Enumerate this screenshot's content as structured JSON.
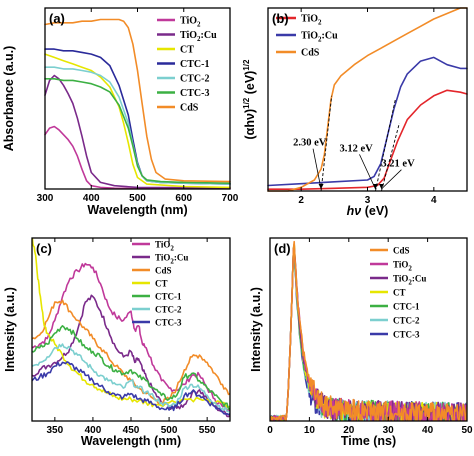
{
  "chart_data": [
    {
      "panel": "(a)",
      "type": "line",
      "xlabel": "Wavelength (nm)",
      "ylabel": "Absorbance (a.u.)",
      "xlim": [
        300,
        700
      ],
      "ylim": [
        0,
        1.1
      ],
      "xticks": [
        300,
        400,
        500,
        600,
        700
      ],
      "legend_position": "top-right",
      "series": [
        {
          "name": "TiO2",
          "label_main": "TiO",
          "label_sub": "2",
          "label_tail": "",
          "color": "#c0399a",
          "x": [
            300,
            310,
            320,
            330,
            340,
            350,
            360,
            370,
            380,
            390,
            400,
            420,
            450,
            500,
            600,
            700
          ],
          "y": [
            0.33,
            0.37,
            0.38,
            0.36,
            0.33,
            0.3,
            0.26,
            0.2,
            0.12,
            0.05,
            0.02,
            0.01,
            0.005,
            0.003,
            0.002,
            0.002
          ]
        },
        {
          "name": "TiO2:Cu",
          "label_main": "TiO",
          "label_sub": "2",
          "label_tail": ":Cu",
          "color": "#7a2a8a",
          "x": [
            300,
            310,
            320,
            330,
            340,
            350,
            360,
            370,
            380,
            390,
            400,
            420,
            450,
            500,
            600,
            700
          ],
          "y": [
            0.57,
            0.66,
            0.69,
            0.67,
            0.63,
            0.58,
            0.52,
            0.43,
            0.32,
            0.2,
            0.1,
            0.04,
            0.02,
            0.01,
            0.008,
            0.006
          ]
        },
        {
          "name": "CT",
          "color": "#e6e600",
          "x": [
            300,
            320,
            340,
            360,
            380,
            400,
            420,
            440,
            460,
            470,
            480,
            490,
            500,
            520,
            600,
            700
          ],
          "y": [
            0.82,
            0.8,
            0.78,
            0.76,
            0.74,
            0.72,
            0.68,
            0.62,
            0.5,
            0.4,
            0.28,
            0.15,
            0.07,
            0.03,
            0.015,
            0.01
          ]
        },
        {
          "name": "CTC-1",
          "color": "#2a2a9a",
          "x": [
            300,
            320,
            340,
            360,
            380,
            400,
            420,
            440,
            460,
            480,
            490,
            500,
            510,
            520,
            550,
            600,
            700
          ],
          "y": [
            0.85,
            0.85,
            0.84,
            0.84,
            0.83,
            0.82,
            0.8,
            0.75,
            0.63,
            0.45,
            0.3,
            0.16,
            0.08,
            0.05,
            0.04,
            0.035,
            0.03
          ]
        },
        {
          "name": "CTC-2",
          "color": "#7ccfcf",
          "x": [
            300,
            320,
            340,
            360,
            380,
            400,
            420,
            440,
            460,
            480,
            490,
            500,
            510,
            520,
            550,
            600,
            700
          ],
          "y": [
            0.74,
            0.74,
            0.73,
            0.73,
            0.72,
            0.71,
            0.69,
            0.65,
            0.56,
            0.4,
            0.27,
            0.15,
            0.08,
            0.05,
            0.04,
            0.035,
            0.03
          ]
        },
        {
          "name": "CTC-3",
          "color": "#3cb043",
          "x": [
            300,
            320,
            340,
            360,
            380,
            400,
            420,
            440,
            460,
            480,
            490,
            500,
            510,
            520,
            550,
            600,
            700
          ],
          "y": [
            0.67,
            0.67,
            0.66,
            0.66,
            0.65,
            0.64,
            0.62,
            0.59,
            0.51,
            0.37,
            0.26,
            0.14,
            0.08,
            0.055,
            0.045,
            0.04,
            0.035
          ]
        },
        {
          "name": "CdS",
          "color": "#f28c28",
          "x": [
            300,
            320,
            340,
            360,
            380,
            400,
            420,
            440,
            460,
            470,
            480,
            490,
            500,
            510,
            520,
            530,
            540,
            560,
            600,
            700
          ],
          "y": [
            1.0,
            1.01,
            1.01,
            1.01,
            1.02,
            1.02,
            1.03,
            1.03,
            1.03,
            1.02,
            0.98,
            0.88,
            0.72,
            0.52,
            0.32,
            0.18,
            0.1,
            0.06,
            0.05,
            0.045
          ]
        }
      ]
    },
    {
      "panel": "(b)",
      "type": "line",
      "xlabel_main": "hν",
      "xlabel_unit": " (eV)",
      "ylabel": "(αhν)1/2 (eV)1/2",
      "ylabel_main": "(αhν)",
      "ylabel_exp1": "1/2",
      "ylabel_mid": " (eV)",
      "ylabel_exp2": "1/2",
      "xlim": [
        1.5,
        4.5
      ],
      "ylim": [
        0,
        1.0
      ],
      "xticks": [
        2,
        3,
        4
      ],
      "legend_position": "top-left",
      "annotations": [
        {
          "text": "2.30 eV",
          "x": 2.3
        },
        {
          "text": "3.12 eV",
          "x": 3.12
        },
        {
          "text": "3.21 eV",
          "x": 3.21
        }
      ],
      "series": [
        {
          "name": "TiO2",
          "label_main": "TiO",
          "label_sub": "2",
          "label_tail": "",
          "color": "#e3262b",
          "x": [
            1.5,
            2.0,
            2.5,
            3.0,
            3.15,
            3.25,
            3.35,
            3.45,
            3.6,
            3.8,
            4.0,
            4.2,
            4.4,
            4.5
          ],
          "y": [
            0.01,
            0.01,
            0.015,
            0.02,
            0.03,
            0.07,
            0.17,
            0.27,
            0.39,
            0.47,
            0.52,
            0.55,
            0.54,
            0.53
          ]
        },
        {
          "name": "TiO2:Cu",
          "label_main": "TiO",
          "label_sub": "2",
          "label_tail": ":Cu",
          "color": "#3a3aa8",
          "x": [
            1.5,
            2.0,
            2.5,
            3.0,
            3.1,
            3.2,
            3.3,
            3.4,
            3.5,
            3.6,
            3.8,
            4.0,
            4.2,
            4.4,
            4.5
          ],
          "y": [
            0.03,
            0.04,
            0.05,
            0.06,
            0.08,
            0.15,
            0.3,
            0.45,
            0.57,
            0.64,
            0.71,
            0.73,
            0.69,
            0.67,
            0.67
          ]
        },
        {
          "name": "CdS",
          "color": "#f28c28",
          "x": [
            1.5,
            1.8,
            2.0,
            2.2,
            2.3,
            2.35,
            2.4,
            2.45,
            2.5,
            2.6,
            2.8,
            3.0,
            3.2,
            3.4,
            3.6,
            3.8,
            4.0,
            4.2,
            4.4,
            4.5
          ],
          "y": [
            0.0,
            0.0,
            0.02,
            0.06,
            0.12,
            0.2,
            0.35,
            0.5,
            0.58,
            0.63,
            0.69,
            0.74,
            0.78,
            0.82,
            0.86,
            0.9,
            0.94,
            0.97,
            1.0,
            1.0
          ]
        }
      ]
    },
    {
      "panel": "(c)",
      "type": "line",
      "xlabel": "Wavelength (nm)",
      "ylabel": "Intensity (a.u.)",
      "xlim": [
        320,
        580
      ],
      "ylim": [
        0,
        1.0
      ],
      "xticks": [
        350,
        400,
        450,
        500,
        550
      ],
      "legend_position": "top-right",
      "series": [
        {
          "name": "TiO2",
          "label_main": "TiO",
          "label_sub": "2",
          "label_tail": "",
          "color": "#c0399a",
          "x": [
            320,
            330,
            340,
            350,
            360,
            370,
            380,
            390,
            400,
            410,
            420,
            430,
            440,
            450,
            455,
            460,
            465,
            470,
            480,
            490,
            500,
            510,
            520,
            530,
            540,
            550,
            560,
            570,
            580
          ],
          "y": [
            0.4,
            0.42,
            0.45,
            0.55,
            0.68,
            0.78,
            0.82,
            0.86,
            0.84,
            0.75,
            0.63,
            0.57,
            0.55,
            0.6,
            0.5,
            0.52,
            0.42,
            0.4,
            0.3,
            0.22,
            0.18,
            0.17,
            0.2,
            0.25,
            0.25,
            0.18,
            0.12,
            0.08,
            0.05
          ]
        },
        {
          "name": "TiO2:Cu",
          "label_main": "TiO",
          "label_sub": "2",
          "label_tail": ":Cu",
          "color": "#7a2a8a",
          "x": [
            320,
            330,
            340,
            350,
            360,
            370,
            380,
            390,
            400,
            410,
            420,
            430,
            440,
            450,
            455,
            460,
            465,
            470,
            480,
            490,
            500,
            510,
            520,
            530,
            540,
            550,
            560,
            570,
            580
          ],
          "y": [
            0.25,
            0.28,
            0.3,
            0.32,
            0.35,
            0.4,
            0.5,
            0.65,
            0.68,
            0.6,
            0.5,
            0.4,
            0.35,
            0.38,
            0.32,
            0.34,
            0.28,
            0.24,
            0.16,
            0.1,
            0.08,
            0.07,
            0.09,
            0.15,
            0.17,
            0.12,
            0.08,
            0.05,
            0.03
          ]
        },
        {
          "name": "CdS",
          "color": "#f28c28",
          "x": [
            320,
            330,
            340,
            350,
            360,
            370,
            380,
            390,
            400,
            410,
            420,
            430,
            440,
            450,
            460,
            470,
            480,
            490,
            500,
            510,
            520,
            530,
            540,
            550,
            560,
            570,
            580
          ],
          "y": [
            0.45,
            0.47,
            0.55,
            0.65,
            0.66,
            0.6,
            0.55,
            0.5,
            0.45,
            0.4,
            0.35,
            0.3,
            0.26,
            0.22,
            0.18,
            0.15,
            0.12,
            0.1,
            0.12,
            0.18,
            0.28,
            0.35,
            0.36,
            0.32,
            0.26,
            0.2,
            0.15
          ]
        },
        {
          "name": "CT",
          "color": "#e6e600",
          "x": [
            320,
            323,
            326,
            330,
            335,
            340,
            350,
            360,
            370,
            380,
            390,
            400,
            410,
            420,
            430,
            440,
            450,
            460,
            470,
            480,
            500,
            520,
            540,
            560,
            580
          ],
          "y": [
            1.0,
            0.95,
            0.85,
            0.7,
            0.55,
            0.48,
            0.42,
            0.36,
            0.3,
            0.26,
            0.22,
            0.2,
            0.17,
            0.15,
            0.13,
            0.12,
            0.12,
            0.11,
            0.1,
            0.09,
            0.1,
            0.12,
            0.12,
            0.1,
            0.08
          ]
        },
        {
          "name": "CTC-1",
          "color": "#3cb043",
          "x": [
            320,
            330,
            340,
            350,
            360,
            370,
            380,
            390,
            400,
            410,
            420,
            430,
            440,
            450,
            460,
            470,
            480,
            490,
            500,
            510,
            520,
            530,
            540,
            550,
            560,
            570,
            580
          ],
          "y": [
            0.38,
            0.4,
            0.42,
            0.48,
            0.52,
            0.5,
            0.45,
            0.4,
            0.38,
            0.35,
            0.3,
            0.28,
            0.26,
            0.28,
            0.24,
            0.22,
            0.18,
            0.14,
            0.12,
            0.14,
            0.24,
            0.26,
            0.22,
            0.18,
            0.14,
            0.1,
            0.07
          ]
        },
        {
          "name": "CTC-2",
          "color": "#7ccfcf",
          "x": [
            320,
            330,
            340,
            350,
            360,
            370,
            380,
            390,
            400,
            410,
            420,
            430,
            440,
            450,
            460,
            470,
            480,
            490,
            500,
            510,
            520,
            530,
            540,
            550,
            560,
            570,
            580
          ],
          "y": [
            0.3,
            0.32,
            0.35,
            0.4,
            0.42,
            0.4,
            0.36,
            0.32,
            0.28,
            0.25,
            0.22,
            0.2,
            0.18,
            0.22,
            0.18,
            0.16,
            0.13,
            0.1,
            0.08,
            0.1,
            0.18,
            0.2,
            0.18,
            0.14,
            0.1,
            0.07,
            0.05
          ]
        },
        {
          "name": "CTC-3",
          "color": "#3a3aa8",
          "x": [
            320,
            330,
            340,
            350,
            360,
            370,
            380,
            390,
            400,
            410,
            420,
            430,
            440,
            450,
            460,
            470,
            480,
            490,
            500,
            510,
            520,
            530,
            540,
            550,
            560,
            570,
            580
          ],
          "y": [
            0.22,
            0.24,
            0.26,
            0.3,
            0.32,
            0.31,
            0.28,
            0.25,
            0.22,
            0.19,
            0.16,
            0.14,
            0.13,
            0.15,
            0.12,
            0.11,
            0.09,
            0.07,
            0.06,
            0.08,
            0.14,
            0.16,
            0.14,
            0.11,
            0.08,
            0.05,
            0.04
          ]
        }
      ]
    },
    {
      "panel": "(d)",
      "type": "line",
      "xlabel": "Time (ns)",
      "ylabel": "Intensity (a.u.)",
      "xlim": [
        0,
        50
      ],
      "ylim": [
        0,
        1.0
      ],
      "xticks": [
        0,
        10,
        20,
        30,
        40,
        50
      ],
      "legend_position": "top-right",
      "series": [
        {
          "name": "CdS",
          "color": "#f28c28"
        },
        {
          "name": "TiO2",
          "label_main": "TiO",
          "label_sub": "2",
          "label_tail": "",
          "color": "#c0399a"
        },
        {
          "name": "TiO2:Cu",
          "label_main": "TiO",
          "label_sub": "2",
          "label_tail": ":Cu",
          "color": "#7a2a8a"
        },
        {
          "name": "CT",
          "color": "#e6e600"
        },
        {
          "name": "CTC-1",
          "color": "#3cb043"
        },
        {
          "name": "CTC-2",
          "color": "#7ccfcf"
        },
        {
          "name": "CTC-3",
          "color": "#3a3aa8"
        }
      ],
      "decay": {
        "peak_time": 6.0,
        "rise_start": 4.0,
        "tau": 1.8,
        "noise_floor": 0.08
      }
    }
  ]
}
